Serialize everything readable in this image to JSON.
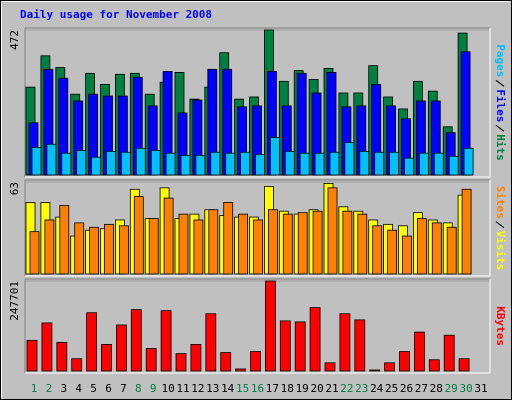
{
  "title": "Daily usage for November 2008",
  "chart_data": [
    {
      "type": "bar",
      "ylim": [
        0,
        472
      ],
      "yticks": [
        472
      ],
      "series": [
        {
          "name": "Hits",
          "color": "#008040",
          "values": [
            286,
            388,
            350,
            263,
            331,
            295,
            328,
            331,
            263,
            302,
            334,
            247,
            286,
            398,
            247,
            254,
            472,
            305,
            340,
            311,
            347,
            267,
            267,
            356,
            254,
            215,
            305,
            273,
            157,
            462,
            null
          ]
        },
        {
          "name": "Files",
          "color": "#0000ff",
          "values": [
            170,
            344,
            315,
            241,
            263,
            257,
            257,
            318,
            225,
            337,
            202,
            244,
            344,
            344,
            222,
            225,
            337,
            225,
            331,
            267,
            334,
            222,
            225,
            295,
            225,
            183,
            241,
            241,
            138,
            401,
            null
          ]
        },
        {
          "name": "Pages",
          "color": "#00c0ff",
          "values": [
            90,
            100,
            71,
            80,
            58,
            77,
            74,
            87,
            80,
            71,
            64,
            64,
            74,
            71,
            74,
            67,
            122,
            77,
            71,
            71,
            74,
            106,
            77,
            74,
            74,
            55,
            71,
            71,
            61,
            87,
            null
          ]
        }
      ]
    },
    {
      "type": "bar",
      "ylim": [
        0,
        63
      ],
      "yticks": [
        63
      ],
      "series": [
        {
          "name": "Visits",
          "color": "#ffff00",
          "values": [
            49,
            49,
            39,
            26,
            30,
            31,
            37,
            58,
            38,
            59,
            38,
            41,
            44,
            40,
            39,
            39,
            60,
            43,
            41,
            44,
            62,
            46,
            43,
            37,
            34,
            33,
            42,
            37,
            35,
            54,
            null
          ]
        },
        {
          "name": "Sites",
          "color": "#ff8000",
          "values": [
            29,
            37,
            47,
            35,
            32,
            34,
            33,
            53,
            38,
            52,
            41,
            37,
            44,
            49,
            41,
            37,
            44,
            41,
            42,
            43,
            59,
            43,
            41,
            33,
            30,
            26,
            38,
            35,
            32,
            58,
            null
          ]
        }
      ]
    },
    {
      "type": "bar",
      "ylim": [
        0,
        247701
      ],
      "yticks": [
        247701
      ],
      "categories": [
        "1",
        "2",
        "3",
        "4",
        "5",
        "6",
        "7",
        "8",
        "9",
        "10",
        "11",
        "12",
        "13",
        "14",
        "15",
        "16",
        "17",
        "18",
        "19",
        "20",
        "21",
        "22",
        "23",
        "24",
        "25",
        "26",
        "27",
        "28",
        "29",
        "30",
        "31"
      ],
      "category_colors": [
        "#008040",
        "#008040",
        "#000000",
        "#000000",
        "#000000",
        "#000000",
        "#000000",
        "#008040",
        "#008040",
        "#000000",
        "#000000",
        "#000000",
        "#000000",
        "#000000",
        "#008040",
        "#008040",
        "#000000",
        "#000000",
        "#000000",
        "#000000",
        "#000000",
        "#008040",
        "#008040",
        "#000000",
        "#000000",
        "#000000",
        "#000000",
        "#000000",
        "#008040",
        "#008040",
        "#000000"
      ],
      "series": [
        {
          "name": "KBytes",
          "color": "#ff0000",
          "values": [
            84400,
            132300,
            78800,
            33800,
            160400,
            73200,
            126700,
            168900,
            61900,
            166100,
            47900,
            73200,
            157600,
            50700,
            5600,
            53500,
            247701,
            137900,
            135100,
            174500,
            22500,
            157600,
            140700,
            2800,
            22500,
            53500,
            107000,
            31000,
            98500,
            33800,
            null
          ]
        }
      ]
    }
  ]
}
